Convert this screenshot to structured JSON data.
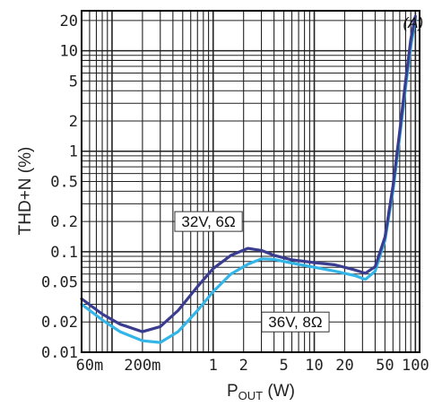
{
  "chart_data": {
    "type": "line",
    "xscale": "log",
    "yscale": "log",
    "xlim": [
      0.05,
      110
    ],
    "ylim": [
      0.01,
      25
    ],
    "grid": true,
    "xlabel_main": "P",
    "xlabel_sub": "OUT",
    "xlabel_unit": " (W)",
    "ylabel": "THD+N (%)",
    "x_ticks": [
      {
        "value": 0.06,
        "label": "60m"
      },
      {
        "value": 0.2,
        "label": "200m"
      },
      {
        "value": 1,
        "label": "1"
      },
      {
        "value": 2,
        "label": "2"
      },
      {
        "value": 5,
        "label": "5"
      },
      {
        "value": 10,
        "label": "10"
      },
      {
        "value": 20,
        "label": "20"
      },
      {
        "value": 50,
        "label": "50"
      },
      {
        "value": 100,
        "label": "100"
      }
    ],
    "y_ticks": [
      {
        "value": 20,
        "label": "20"
      },
      {
        "value": 10,
        "label": "10"
      },
      {
        "value": 5,
        "label": "5"
      },
      {
        "value": 2,
        "label": "2"
      },
      {
        "value": 1,
        "label": "1"
      },
      {
        "value": 0.5,
        "label": "0.5"
      },
      {
        "value": 0.2,
        "label": "0.2"
      },
      {
        "value": 0.1,
        "label": "0.1"
      },
      {
        "value": 0.05,
        "label": "0.05"
      },
      {
        "value": 0.02,
        "label": "0.02"
      },
      {
        "value": 0.01,
        "label": "0.01"
      }
    ],
    "series": [
      {
        "name": "32V, 6Ω",
        "color": "#3a3d8f",
        "points": [
          [
            0.05,
            0.034
          ],
          [
            0.08,
            0.024
          ],
          [
            0.12,
            0.019
          ],
          [
            0.2,
            0.016
          ],
          [
            0.3,
            0.018
          ],
          [
            0.45,
            0.026
          ],
          [
            0.7,
            0.045
          ],
          [
            1.0,
            0.068
          ],
          [
            1.5,
            0.092
          ],
          [
            2.2,
            0.108
          ],
          [
            3.0,
            0.103
          ],
          [
            4.0,
            0.092
          ],
          [
            6.0,
            0.083
          ],
          [
            10,
            0.078
          ],
          [
            16,
            0.074
          ],
          [
            25,
            0.066
          ],
          [
            32,
            0.061
          ],
          [
            40,
            0.071
          ],
          [
            50,
            0.14
          ],
          [
            60,
            0.45
          ],
          [
            70,
            1.6
          ],
          [
            80,
            5
          ],
          [
            90,
            13
          ],
          [
            100,
            22
          ]
        ]
      },
      {
        "name": "36V, 8Ω",
        "color": "#33b5e8",
        "points": [
          [
            0.05,
            0.03
          ],
          [
            0.08,
            0.021
          ],
          [
            0.12,
            0.016
          ],
          [
            0.2,
            0.013
          ],
          [
            0.3,
            0.0125
          ],
          [
            0.45,
            0.016
          ],
          [
            0.7,
            0.026
          ],
          [
            1.0,
            0.04
          ],
          [
            1.5,
            0.06
          ],
          [
            2.2,
            0.075
          ],
          [
            3.0,
            0.085
          ],
          [
            4.0,
            0.084
          ],
          [
            6.0,
            0.077
          ],
          [
            10,
            0.07
          ],
          [
            16,
            0.064
          ],
          [
            25,
            0.058
          ],
          [
            32,
            0.053
          ],
          [
            40,
            0.064
          ],
          [
            50,
            0.13
          ],
          [
            60,
            0.4
          ],
          [
            70,
            1.4
          ],
          [
            80,
            4.3
          ],
          [
            90,
            11
          ],
          [
            100,
            21
          ]
        ]
      }
    ],
    "annotations": [
      {
        "text": "32V, 6Ω",
        "x": 0.9,
        "y": 0.2
      },
      {
        "text": "36V, 8Ω",
        "x": 6.5,
        "y": 0.02
      },
      {
        "text": "(A)",
        "x": 95,
        "y": 17
      }
    ],
    "colors": {
      "grid": "#222222",
      "frame": "#000000",
      "label_box_stroke": "#333333"
    }
  }
}
